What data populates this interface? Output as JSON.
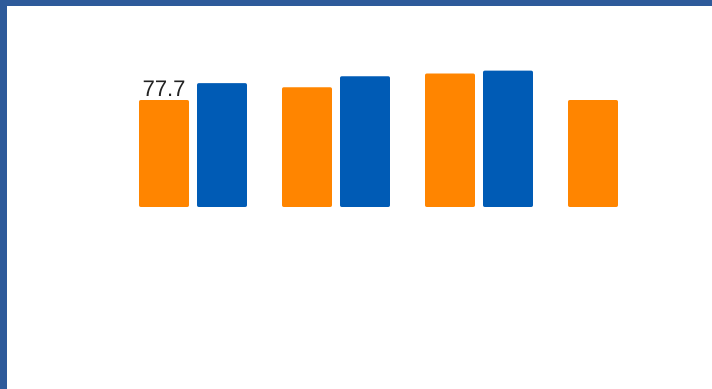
{
  "chart_data": {
    "type": "bar",
    "ylim": [
      0,
      130
    ],
    "grid": false,
    "legend": "none",
    "series": [
      {
        "color": "#ff8500",
        "values": [
          77.7,
          87,
          97,
          77.7
        ]
      },
      {
        "color": "#005bb5",
        "values": [
          90,
          95,
          99,
          null
        ]
      }
    ],
    "data_labels": [
      {
        "series": 0,
        "index": 0,
        "text": "77.7"
      }
    ]
  }
}
